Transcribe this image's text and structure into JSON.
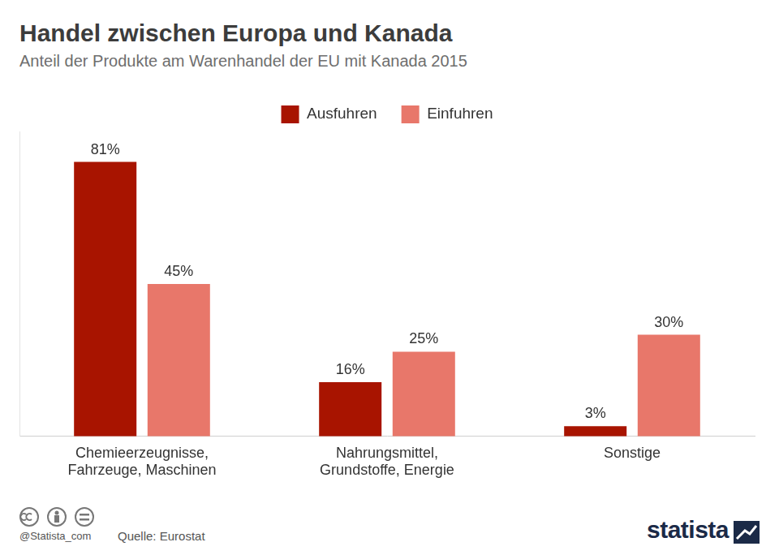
{
  "chart_data": {
    "type": "bar",
    "title": "Handel zwischen Europa und Kanada",
    "subtitle": "Anteil der Produkte am Warenhandel der EU mit Kanada 2015",
    "categories": [
      "Chemieerzeugnisse, Fahrzeuge, Maschinen",
      "Nahrungsmittel, Grundstoffe, Energie",
      "Sonstige"
    ],
    "series": [
      {
        "name": "Ausfuhren",
        "color": "#a81400",
        "values": [
          81,
          16,
          3
        ],
        "value_labels": [
          "81%",
          "16%",
          "3%"
        ]
      },
      {
        "name": "Einfuhren",
        "color": "#e8776a",
        "values": [
          45,
          25,
          30
        ],
        "value_labels": [
          "45%",
          "25%",
          "30%"
        ]
      }
    ],
    "ylim": [
      0,
      90
    ],
    "grid": false,
    "legend": "top",
    "data_labels": true,
    "tick_labels": "x",
    "source": "Quelle: Eurostat",
    "credit": "@Statista_com",
    "brand": "statista"
  }
}
